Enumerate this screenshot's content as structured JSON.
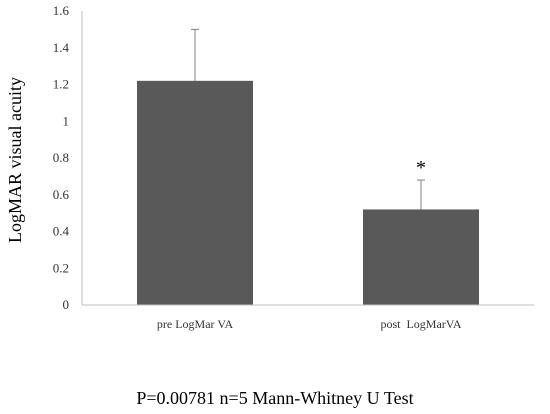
{
  "chart_data": {
    "type": "bar",
    "categories": [
      "pre LogMar VA",
      "post  LogMarVA"
    ],
    "values": [
      1.22,
      0.52
    ],
    "error_upper": [
      1.5,
      0.68
    ],
    "annotations": [
      "",
      "*"
    ],
    "xlabel": "",
    "ylabel": "LogMAR visual acuity",
    "ylim": [
      0,
      1.6
    ],
    "yticks": [
      0,
      0.2,
      0.4,
      0.6,
      0.8,
      1,
      1.2,
      1.4,
      1.6
    ],
    "ytick_labels": [
      "0",
      "0.2",
      "0.4",
      "0.6",
      "0.8",
      "1",
      "1.2",
      "1.4",
      "1.6"
    ],
    "grid": false,
    "legend": "none",
    "bar_color": "#595959"
  },
  "caption": "P=0.00781 n=5 Mann-Whitney U Test"
}
